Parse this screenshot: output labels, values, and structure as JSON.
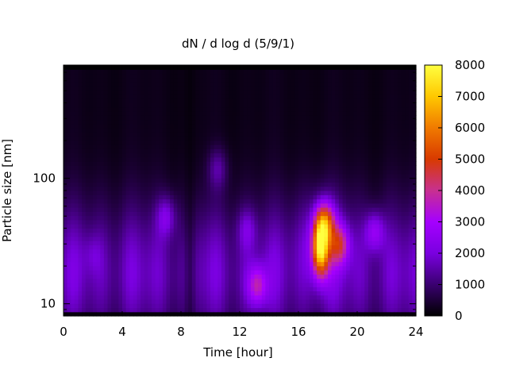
{
  "chart_data": {
    "type": "heatmap",
    "title": "dN / d log d (5/9/1)",
    "xlabel": "Time [hour]",
    "ylabel": "Particle size [nm]",
    "xlim": [
      0,
      24
    ],
    "x_ticks": [
      0,
      4,
      8,
      12,
      16,
      20,
      24
    ],
    "ylim": [
      8,
      800
    ],
    "y_scale": "log",
    "y_ticks": [
      10,
      100
    ],
    "colorbar": {
      "range": [
        0,
        8000
      ],
      "ticks": [
        0,
        1000,
        2000,
        3000,
        4000,
        5000,
        6000,
        7000,
        8000
      ],
      "colormap": [
        "#000000",
        "#3a0070",
        "#7a00e0",
        "#a500ff",
        "#c83090",
        "#d83a00",
        "#f07a00",
        "#ffc800",
        "#ffff40"
      ]
    },
    "features": [
      {
        "time_h": 17.5,
        "size_nm": 28,
        "value": 7500
      },
      {
        "time_h": 17.8,
        "size_nm": 45,
        "value": 5000
      },
      {
        "time_h": 18.8,
        "size_nm": 30,
        "value": 4200
      },
      {
        "time_h": 13.2,
        "size_nm": 14,
        "value": 3800
      },
      {
        "time_h": 21.2,
        "size_nm": 38,
        "value": 3300
      },
      {
        "time_h": 7.0,
        "size_nm": 50,
        "value": 2900
      },
      {
        "time_h": 10.5,
        "size_nm": 120,
        "value": 2600
      },
      {
        "time_h": 12.5,
        "size_nm": 40,
        "value": 2500
      },
      {
        "time_h": 2.0,
        "size_nm": 25,
        "value": 2000
      }
    ]
  }
}
